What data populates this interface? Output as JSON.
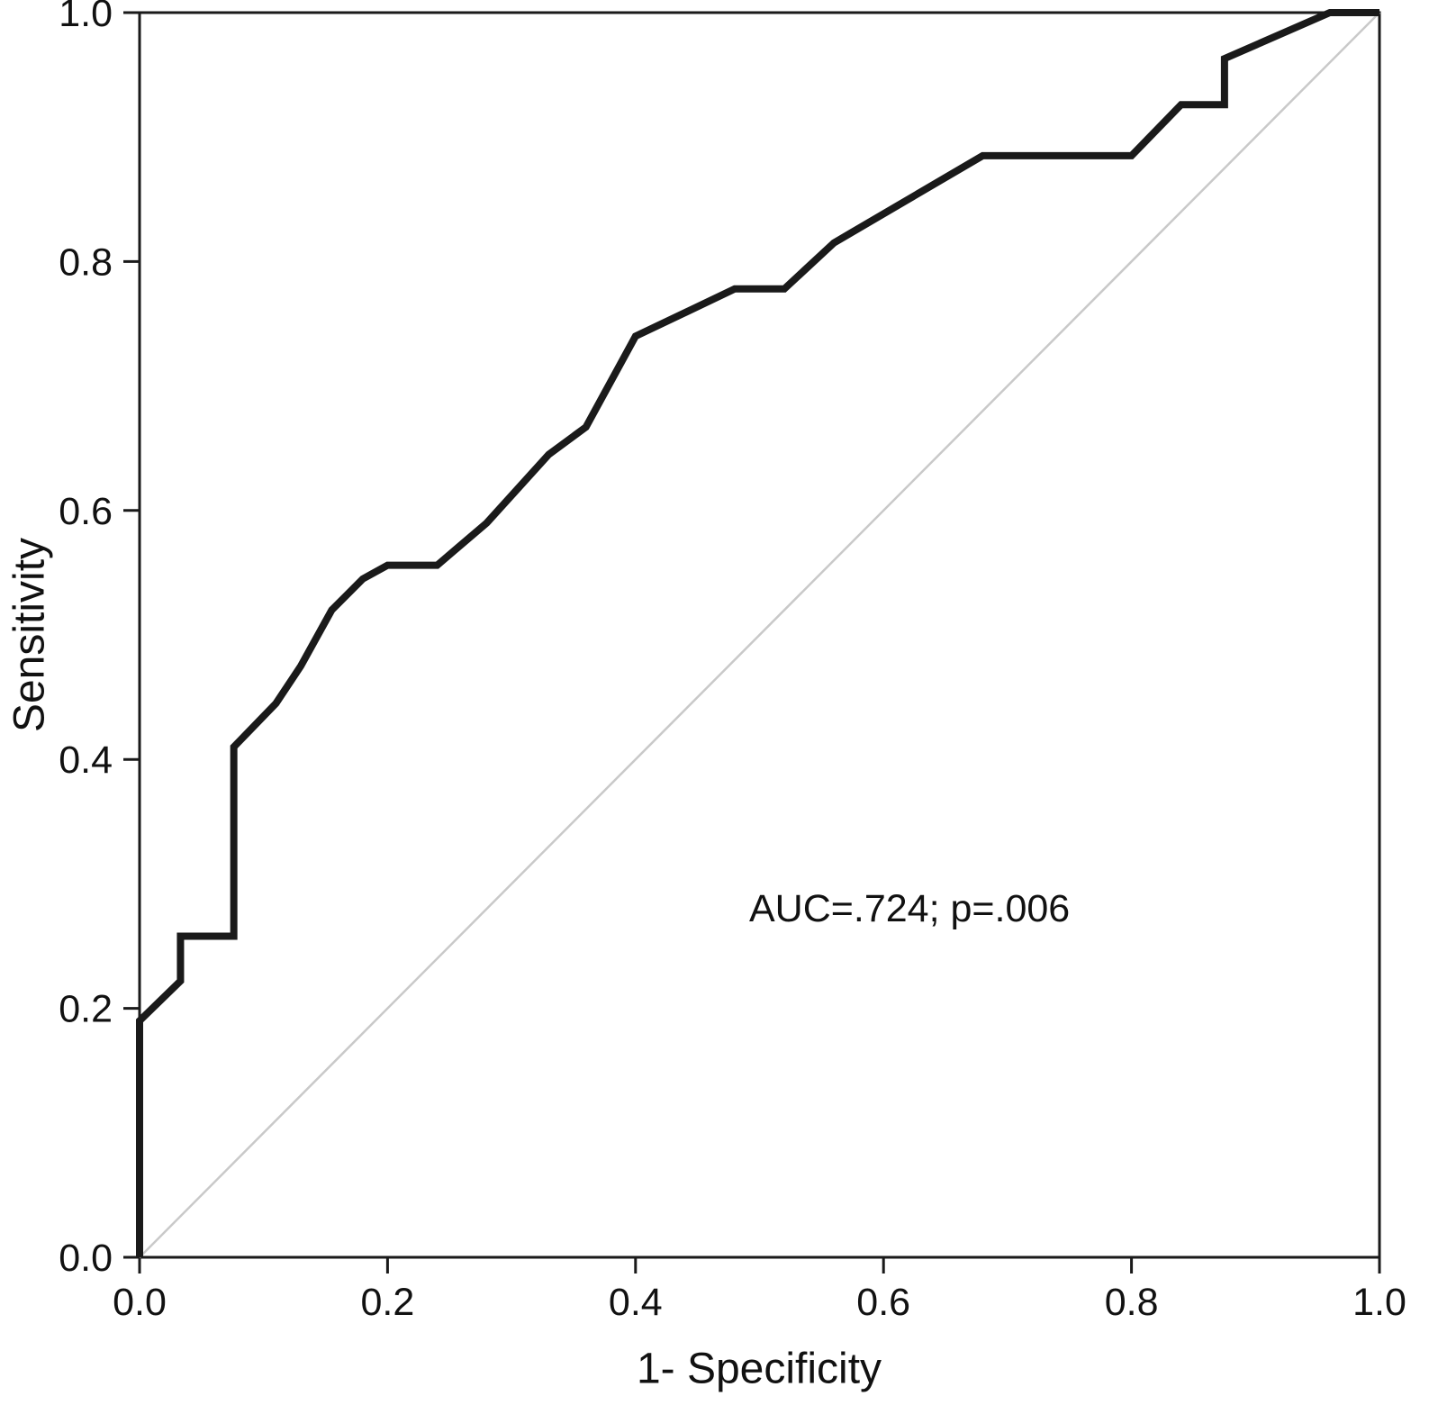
{
  "chart_data": {
    "type": "line",
    "title": "",
    "xlabel": "1- Specificity",
    "ylabel": "Sensitivity",
    "annotation": "AUC=.724; p=.006",
    "xlim": [
      0,
      1
    ],
    "ylim": [
      0,
      1
    ],
    "xticks": [
      0.0,
      0.2,
      0.4,
      0.6,
      0.8,
      1.0
    ],
    "yticks": [
      0.0,
      0.2,
      0.4,
      0.6,
      0.8,
      1.0
    ],
    "xtick_labels": [
      "0.0",
      "0.2",
      "0.4",
      "0.6",
      "0.8",
      "1.0"
    ],
    "ytick_labels": [
      "0.0",
      "0.2",
      "0.4",
      "0.6",
      "0.8",
      "1.0"
    ],
    "grid": false,
    "legend": "none",
    "frame_color": "#1a1a1a",
    "series": [
      {
        "name": "ROC curve",
        "color": "#1a1a1a",
        "width": 8,
        "points": [
          [
            0.0,
            0.0
          ],
          [
            0.0,
            0.19
          ],
          [
            0.033,
            0.222
          ],
          [
            0.033,
            0.258
          ],
          [
            0.076,
            0.258
          ],
          [
            0.076,
            0.41
          ],
          [
            0.11,
            0.445
          ],
          [
            0.13,
            0.475
          ],
          [
            0.155,
            0.52
          ],
          [
            0.18,
            0.545
          ],
          [
            0.2,
            0.556
          ],
          [
            0.24,
            0.556
          ],
          [
            0.28,
            0.59
          ],
          [
            0.33,
            0.645
          ],
          [
            0.36,
            0.667
          ],
          [
            0.4,
            0.74
          ],
          [
            0.48,
            0.778
          ],
          [
            0.52,
            0.778
          ],
          [
            0.56,
            0.815
          ],
          [
            0.62,
            0.85
          ],
          [
            0.68,
            0.885
          ],
          [
            0.8,
            0.885
          ],
          [
            0.84,
            0.926
          ],
          [
            0.875,
            0.926
          ],
          [
            0.875,
            0.963
          ],
          [
            0.96,
            1.0
          ],
          [
            1.0,
            1.0
          ]
        ]
      },
      {
        "name": "Reference line",
        "color": "#c9c9c9",
        "width": 2.5,
        "points": [
          [
            0.0,
            0.0
          ],
          [
            1.0,
            1.0
          ]
        ]
      }
    ]
  }
}
